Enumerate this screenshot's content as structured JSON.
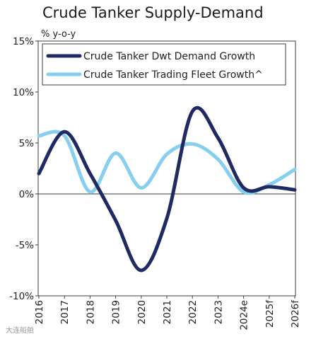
{
  "chart_data": {
    "type": "line",
    "title": "Crude Tanker Supply-Demand",
    "ylabel": "% y-o-y",
    "xlabel": "",
    "categories": [
      "2016",
      "2017",
      "2018",
      "2019",
      "2020",
      "2021",
      "2022",
      "2023",
      "2024e",
      "2025f",
      "2026f"
    ],
    "y_ticks": [
      "15%",
      "10%",
      "5%",
      "0%",
      "-5%",
      "-10%"
    ],
    "y_tick_values": [
      15,
      10,
      5,
      0,
      -5,
      -10
    ],
    "ylim": [
      -10,
      15
    ],
    "grid": false,
    "legend_position": "top",
    "series": [
      {
        "name": "Crude Tanker Dwt Demand Growth",
        "color": "#1f2a63",
        "values": [
          2.0,
          6.1,
          2.0,
          -2.6,
          -7.5,
          -2.4,
          8.1,
          5.5,
          0.6,
          0.7,
          0.4
        ]
      },
      {
        "name": "Crude Tanker Trading Fleet Growth^",
        "color": "#86cfee",
        "values": [
          5.7,
          5.7,
          0.2,
          4.0,
          0.6,
          3.9,
          4.9,
          3.4,
          0.2,
          0.9,
          2.4
        ]
      }
    ]
  },
  "watermark": "大连船舶"
}
